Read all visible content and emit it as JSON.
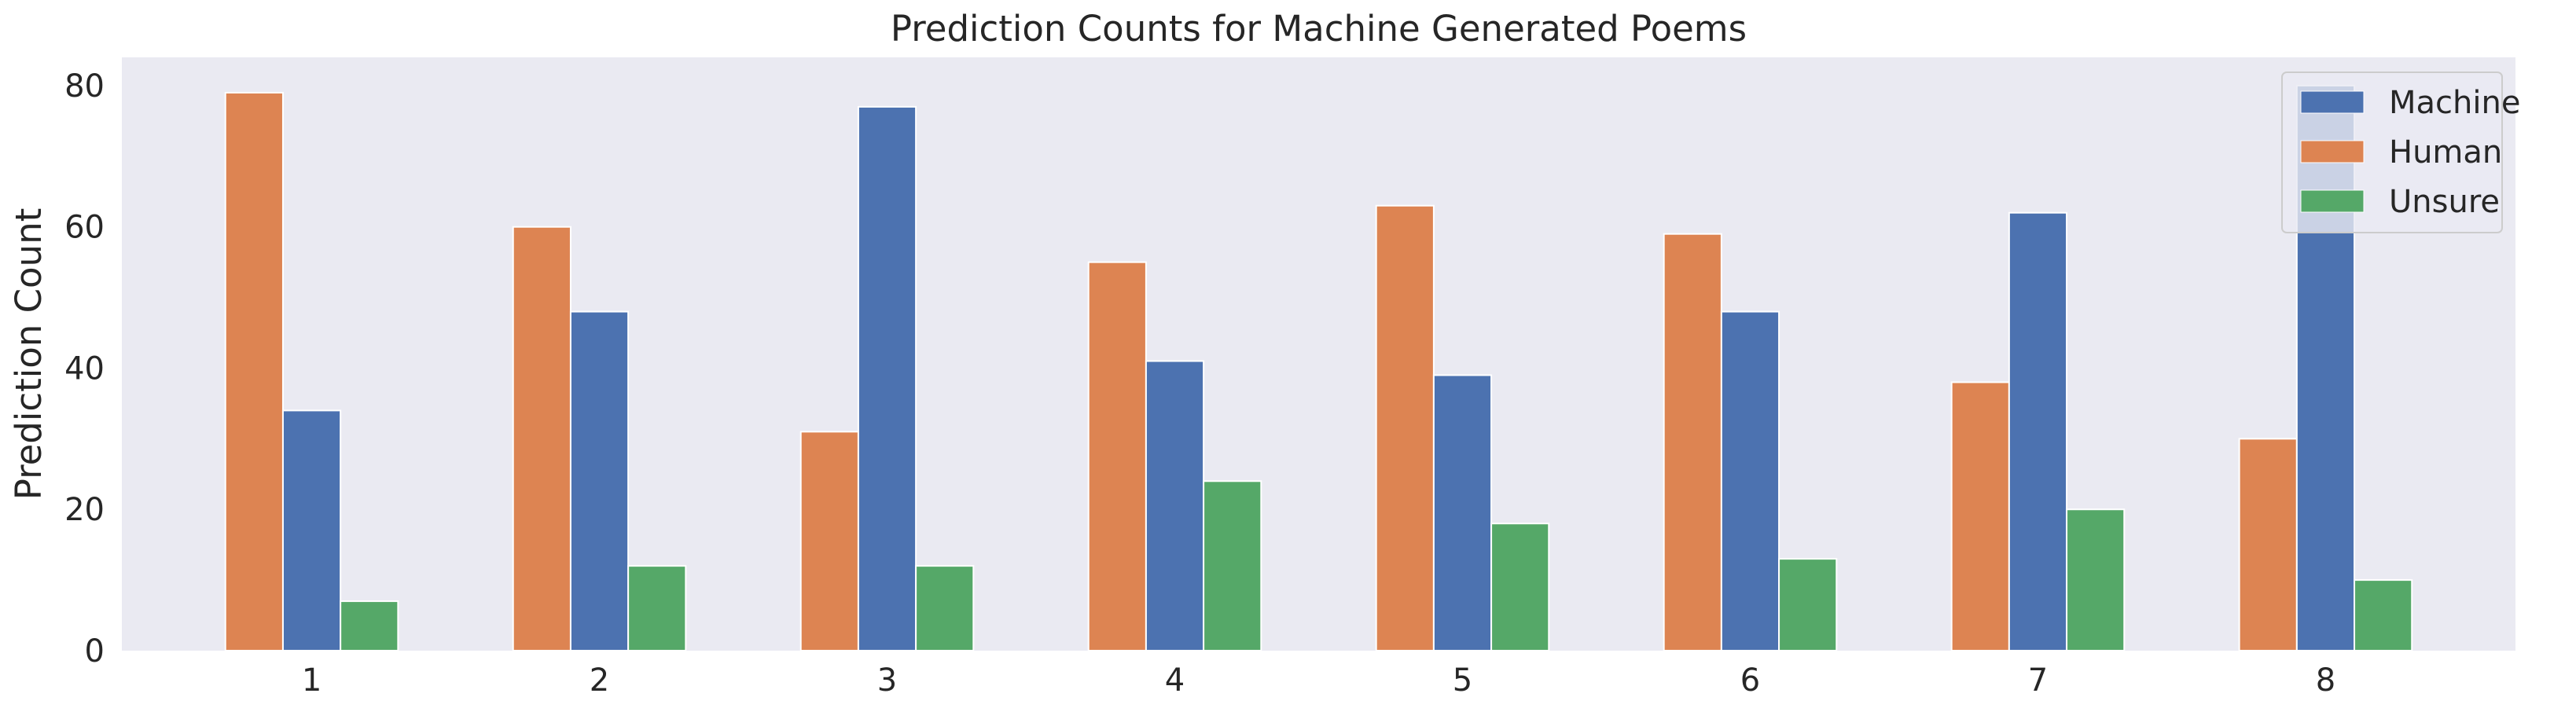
{
  "chart_data": {
    "type": "bar",
    "title": "Prediction Counts for Machine Generated Poems",
    "xlabel": "",
    "ylabel": "Prediction Count",
    "categories": [
      "1",
      "2",
      "3",
      "4",
      "5",
      "6",
      "7",
      "8"
    ],
    "series": [
      {
        "name": "Human",
        "color": "#dd8452",
        "values": [
          79,
          60,
          31,
          55,
          63,
          59,
          38,
          30
        ]
      },
      {
        "name": "Machine",
        "color": "#4c72b0",
        "values": [
          34,
          48,
          77,
          41,
          39,
          48,
          62,
          80
        ]
      },
      {
        "name": "Unsure",
        "color": "#55a868",
        "values": [
          7,
          12,
          12,
          24,
          18,
          13,
          20,
          10
        ]
      }
    ],
    "legend_order": [
      "Machine",
      "Human",
      "Unsure"
    ],
    "ylim": [
      0,
      84
    ],
    "yticks": [
      0,
      20,
      40,
      60,
      80
    ],
    "grid": false,
    "legend_position": "top-right",
    "background_color": "#eaeaf2"
  }
}
